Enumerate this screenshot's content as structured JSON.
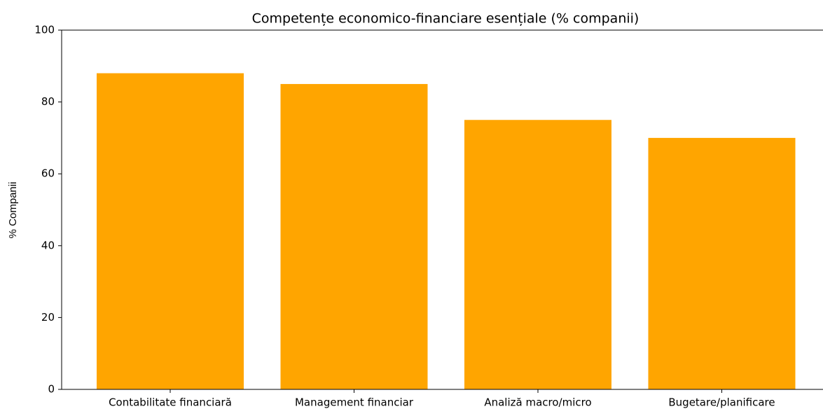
{
  "chart_data": {
    "type": "bar",
    "title": "Competențe economico-financiare esențiale (% companii)",
    "ylabel": "% Companii",
    "categories": [
      "Contabilitate financiară",
      "Management financiar",
      "Analiză macro/micro",
      "Bugetare/planificare"
    ],
    "values": [
      88,
      85,
      75,
      70
    ],
    "color": "#ffa500",
    "ylim": [
      0,
      100
    ],
    "yticks": [
      0,
      20,
      40,
      60,
      80,
      100
    ],
    "grid": false
  }
}
